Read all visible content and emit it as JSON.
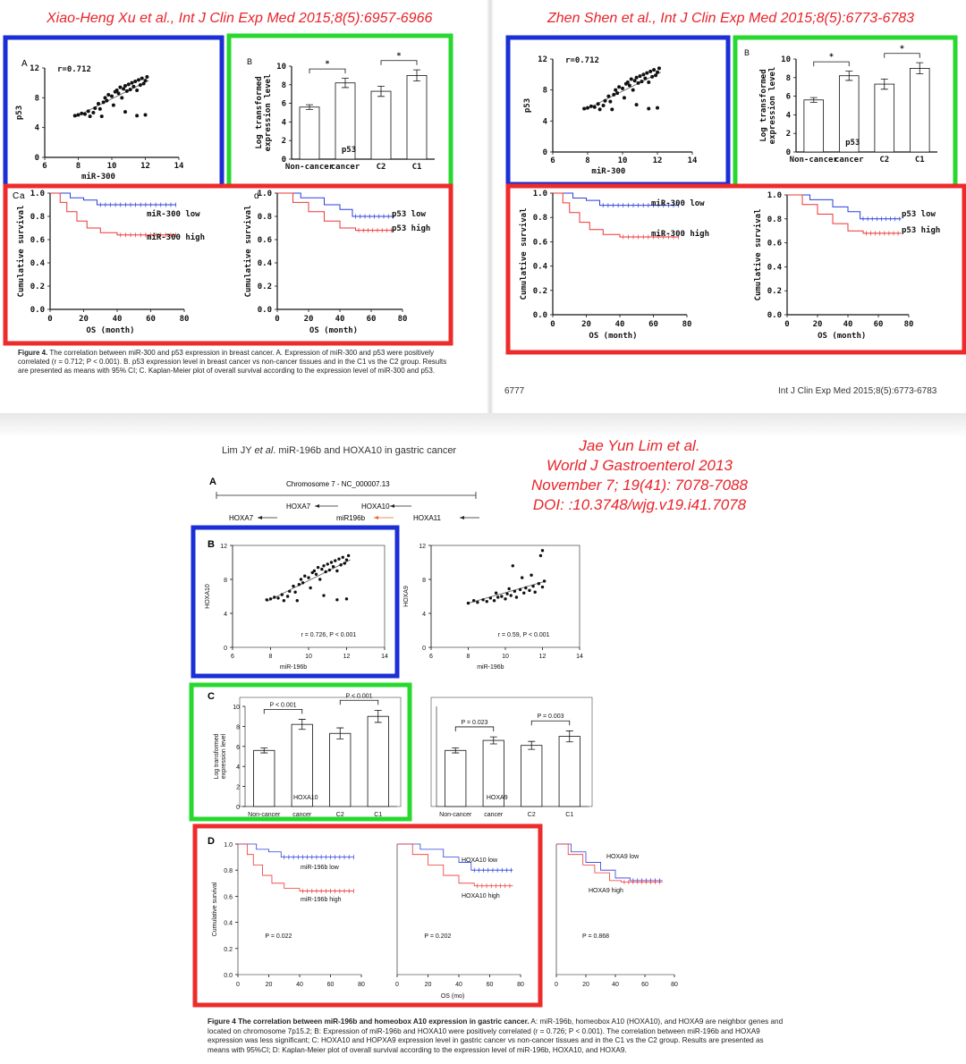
{
  "headers": {
    "left": "Xiao-Heng Xu et al., Int J Clin Exp Med 2015;8(5):6957-6966",
    "right": "Zhen Shen et al., Int J Clin Exp Med 2015;8(5):6773-6783",
    "bottom_lines": [
      "Jae Yun Lim et al.",
      "World J Gastroenterol 2013",
      "November 7; 19(41): 7078-7088",
      "DOI: :10.3748/wjg.v19.i41.7078"
    ]
  },
  "top_left_caption": {
    "label": "Figure 4.",
    "text": " The correlation between miR-300 and p53 expression in breast cancer. A. Expression of miR-300 and p53 were positively correlated (r = 0.712; P < 0.001). B. p53 expression level in breast cancer vs non-cancer tissues and in the C1 vs the C2 group. Results are presented as means with 95% CI; C. Kaplan-Meier plot of overall survival according to the expression level of miR-300 and p53."
  },
  "top_right_footer": {
    "page": "6777",
    "journal": "Int J Clin Exp Med 2015;8(5):6773-6783"
  },
  "bottom_running_head": {
    "author": "Lim JY ",
    "etal": "et al",
    "rest": ". miR-196b and HOXA10 in gastric cancer"
  },
  "gene_map": {
    "panel_label": "A",
    "chromosome": "Chromosome 7 - NC_000007.13",
    "genes": [
      "HOXA7",
      "HOXA10",
      "HOXA7",
      "miR196b",
      "HOXA11"
    ]
  },
  "panels": {
    "A": "A",
    "B": "B",
    "C": "C",
    "D": "D",
    "Ca": "C",
    "a": "a",
    "d": "d",
    "B2": "B"
  },
  "bottom_caption": {
    "label": "Figure 4  The correlation between miR-196b and homeobox A10 expression in gastric cancer.",
    "text": " A: miR-196b, homeobox A10 (HOXA10), and HOXA9 are neighbor genes and located on chromosome 7p15.2; B: Expression of miR-196b and HOXA10 were positively correlated (r = 0.726; P < 0.001). The correlation between miR-196b and HOXA9 expression was less significant; C: HOXA10 and HOPXA9 expression level in gastric cancer vs non-cancer tissues and in the C1 vs the C2 group. Results are presented as means with 95%CI; D: Kaplan-Meier plot of overall survival according to the expression level of miR-196b, HOXA10, and HOXA9."
  },
  "chart_data": [
    {
      "id": "tl_scatter",
      "type": "scatter",
      "ylabel": "p53",
      "xlabel": "miR-300",
      "annotation": "r=0.712",
      "xticks": [
        6,
        8,
        10,
        12,
        14
      ],
      "yticks": [
        0,
        4,
        8,
        12
      ],
      "xlim": [
        6,
        14
      ],
      "ylim": [
        0,
        12
      ],
      "points": [
        [
          7.8,
          5.6
        ],
        [
          8.0,
          5.7
        ],
        [
          8.2,
          5.9
        ],
        [
          8.4,
          5.8
        ],
        [
          8.6,
          6.2
        ],
        [
          8.7,
          5.5
        ],
        [
          8.9,
          6.0
        ],
        [
          9.0,
          6.6
        ],
        [
          9.2,
          7.2
        ],
        [
          9.3,
          6.5
        ],
        [
          9.5,
          7.4
        ],
        [
          9.6,
          8.0
        ],
        [
          9.7,
          7.6
        ],
        [
          9.8,
          8.4
        ],
        [
          10.0,
          8.2
        ],
        [
          10.1,
          7.0
        ],
        [
          10.2,
          8.8
        ],
        [
          10.3,
          9.0
        ],
        [
          10.4,
          8.6
        ],
        [
          10.5,
          9.4
        ],
        [
          10.6,
          8.0
        ],
        [
          10.7,
          9.2
        ],
        [
          10.8,
          9.6
        ],
        [
          10.9,
          8.9
        ],
        [
          11.0,
          9.8
        ],
        [
          11.1,
          9.1
        ],
        [
          11.2,
          10.0
        ],
        [
          11.3,
          9.5
        ],
        [
          11.4,
          10.2
        ],
        [
          11.5,
          9.0
        ],
        [
          11.6,
          10.4
        ],
        [
          11.7,
          9.7
        ],
        [
          11.8,
          10.6
        ],
        [
          11.9,
          9.9
        ],
        [
          12.0,
          10.3
        ],
        [
          12.1,
          10.8
        ],
        [
          11.5,
          5.6
        ],
        [
          12.0,
          5.7
        ],
        [
          10.8,
          6.1
        ],
        [
          9.4,
          5.5
        ]
      ],
      "trend": [
        [
          7.8,
          5.4
        ],
        [
          12.2,
          10.3
        ]
      ]
    },
    {
      "id": "tl_bar",
      "type": "bar",
      "ylabel": "Log transformed expression level",
      "categories": [
        "Non-cancer",
        "cancer",
        "C2",
        "C1"
      ],
      "values": [
        5.6,
        8.2,
        7.3,
        9.0
      ],
      "errors": [
        0.25,
        0.5,
        0.55,
        0.6
      ],
      "ylim": [
        0,
        10
      ],
      "yticks": [
        0,
        2,
        4,
        6,
        8,
        10
      ],
      "inner_label": "p53",
      "significance": [
        "*",
        "*"
      ]
    },
    {
      "id": "tl_km1",
      "type": "line",
      "ylabel": "Cumulative survival",
      "xlabel": "OS (month)",
      "xticks": [
        0,
        20,
        40,
        60,
        80
      ],
      "yticks": [
        0.0,
        0.2,
        0.4,
        0.6,
        0.8,
        1.0
      ],
      "series": [
        {
          "name": "miR-300 low",
          "color": "#2b3fdc",
          "steps": [
            [
              0,
              1.0
            ],
            [
              12,
              0.96
            ],
            [
              20,
              0.94
            ],
            [
              28,
              0.9
            ],
            [
              75,
              0.9
            ]
          ]
        },
        {
          "name": "miR-300 high",
          "color": "#ee3535",
          "steps": [
            [
              0,
              1.0
            ],
            [
              6,
              0.92
            ],
            [
              10,
              0.84
            ],
            [
              16,
              0.76
            ],
            [
              22,
              0.7
            ],
            [
              30,
              0.66
            ],
            [
              40,
              0.64
            ],
            [
              75,
              0.64
            ]
          ]
        }
      ]
    },
    {
      "id": "tl_km2",
      "type": "line",
      "ylabel": "Cumulative survival",
      "xlabel": "OS (month)",
      "xticks": [
        0,
        20,
        40,
        60,
        80
      ],
      "yticks": [
        0.0,
        0.2,
        0.4,
        0.6,
        0.8,
        1.0
      ],
      "series": [
        {
          "name": "p53 low",
          "color": "#2b3fdc",
          "steps": [
            [
              0,
              1.0
            ],
            [
              15,
              0.96
            ],
            [
              30,
              0.9
            ],
            [
              40,
              0.86
            ],
            [
              48,
              0.8
            ],
            [
              75,
              0.8
            ]
          ]
        },
        {
          "name": "p53 high",
          "color": "#ee3535",
          "steps": [
            [
              0,
              1.0
            ],
            [
              10,
              0.92
            ],
            [
              20,
              0.84
            ],
            [
              30,
              0.76
            ],
            [
              40,
              0.7
            ],
            [
              50,
              0.68
            ],
            [
              75,
              0.68
            ]
          ]
        }
      ]
    },
    {
      "id": "tr_scatter",
      "type": "scatter",
      "ylabel": "p53",
      "xlabel": "miR-300",
      "annotation": "r=0.712",
      "xticks": [
        6,
        8,
        10,
        12,
        14
      ],
      "yticks": [
        0,
        4,
        8,
        12
      ],
      "xlim": [
        6,
        14
      ],
      "ylim": [
        0,
        12
      ]
    },
    {
      "id": "tr_bar",
      "type": "bar",
      "ylabel": "Log transformed expression level",
      "categories": [
        "Non-cancer",
        "cancer",
        "C2",
        "C1"
      ],
      "values": [
        5.6,
        8.2,
        7.3,
        9.0
      ],
      "errors": [
        0.25,
        0.5,
        0.55,
        0.6
      ],
      "ylim": [
        0,
        10
      ],
      "yticks": [
        0,
        2,
        4,
        6,
        8,
        10
      ],
      "inner_label": "p53",
      "significance": [
        "*",
        "*"
      ]
    },
    {
      "id": "tr_km1",
      "type": "line",
      "ylabel": "Cumulative survival",
      "xlabel": "OS (month)",
      "xticks": [
        0,
        20,
        40,
        60,
        80
      ],
      "yticks": [
        0.0,
        0.2,
        0.4,
        0.6,
        0.8,
        1.0
      ],
      "series": [
        {
          "name": "miR-300 low",
          "color": "#2b3fdc"
        },
        {
          "name": "miR-300 high",
          "color": "#ee3535"
        }
      ]
    },
    {
      "id": "tr_km2",
      "type": "line",
      "ylabel": "Cumulative survival",
      "xlabel": "OS (month)",
      "xticks": [
        0,
        20,
        40,
        60,
        80
      ],
      "yticks": [
        0.0,
        0.2,
        0.4,
        0.6,
        0.8,
        1.0
      ],
      "series": [
        {
          "name": "p53 low",
          "color": "#2b3fdc"
        },
        {
          "name": "p53 high",
          "color": "#ee3535"
        }
      ]
    },
    {
      "id": "b_scatter1",
      "type": "scatter",
      "ylabel": "HOXA10",
      "xlabel": "miR-196b",
      "annotation": "r = 0.726, P < 0.001",
      "xticks": [
        6,
        8,
        10,
        12,
        14
      ],
      "yticks": [
        0,
        4,
        8,
        12
      ],
      "xlim": [
        6,
        14
      ],
      "ylim": [
        0,
        12
      ]
    },
    {
      "id": "b_scatter2",
      "type": "scatter",
      "ylabel": "HOXA9",
      "xlabel": "miR-196b",
      "annotation": "r = 0.59, P < 0.001",
      "xticks": [
        6,
        8,
        10,
        12,
        14
      ],
      "yticks": [
        0,
        4,
        8,
        12
      ],
      "xlim": [
        6,
        14
      ],
      "ylim": [
        0,
        12
      ],
      "points": [
        [
          8.0,
          5.2
        ],
        [
          8.3,
          5.5
        ],
        [
          8.5,
          5.3
        ],
        [
          8.8,
          5.6
        ],
        [
          9.0,
          5.4
        ],
        [
          9.2,
          5.8
        ],
        [
          9.4,
          5.5
        ],
        [
          9.6,
          5.9
        ],
        [
          9.8,
          6.0
        ],
        [
          10.0,
          5.7
        ],
        [
          10.1,
          6.3
        ],
        [
          10.3,
          6.1
        ],
        [
          10.5,
          6.6
        ],
        [
          10.6,
          5.9
        ],
        [
          10.8,
          6.8
        ],
        [
          11.0,
          6.4
        ],
        [
          11.1,
          7.0
        ],
        [
          11.3,
          6.7
        ],
        [
          11.5,
          7.2
        ],
        [
          11.6,
          6.5
        ],
        [
          11.8,
          7.5
        ],
        [
          12.0,
          7.1
        ],
        [
          12.1,
          7.8
        ],
        [
          10.4,
          9.6
        ],
        [
          11.9,
          10.8
        ],
        [
          12.0,
          11.4
        ],
        [
          10.9,
          8.2
        ],
        [
          11.4,
          8.5
        ],
        [
          9.5,
          6.4
        ],
        [
          10.2,
          6.9
        ]
      ],
      "trend": [
        [
          8.0,
          5.2
        ],
        [
          12.2,
          7.8
        ]
      ]
    },
    {
      "id": "b_bar1",
      "type": "bar",
      "ylabel": "Log transformed expression level",
      "categories": [
        "Non-cancer",
        "cancer",
        "C2",
        "C1"
      ],
      "values": [
        5.6,
        8.2,
        7.3,
        9.0
      ],
      "errors": [
        0.25,
        0.5,
        0.55,
        0.6
      ],
      "ylim": [
        0,
        10
      ],
      "yticks": [
        0,
        2,
        4,
        6,
        8,
        10
      ],
      "inner_label": "HOXA10",
      "significance": [
        "P < 0.001",
        "P < 0.001"
      ]
    },
    {
      "id": "b_bar2",
      "type": "bar",
      "categories": [
        "Non-cancer",
        "cancer",
        "C2",
        "C1"
      ],
      "values": [
        5.6,
        6.6,
        6.1,
        7.0
      ],
      "errors": [
        0.25,
        0.35,
        0.4,
        0.55
      ],
      "ylim": [
        0,
        10
      ],
      "inner_label": "HOXA9",
      "significance": [
        "P = 0.023",
        "P = 0.003"
      ]
    },
    {
      "id": "b_km1",
      "type": "line",
      "ylabel": "Cumulative survival",
      "xticks": [
        0,
        20,
        40,
        60,
        80
      ],
      "yticks": [
        0.0,
        0.2,
        0.4,
        0.6,
        0.8,
        1.0
      ],
      "annotation": "P = 0.022",
      "series": [
        {
          "name": "miR-196b low",
          "color": "#2b3fdc"
        },
        {
          "name": "miR-196b high",
          "color": "#ee3535"
        }
      ]
    },
    {
      "id": "b_km2",
      "type": "line",
      "xlabel": "OS (mo)",
      "xticks": [
        0,
        20,
        40,
        60,
        80
      ],
      "annotation": "P = 0.202",
      "series": [
        {
          "name": "HOXA10 low",
          "color": "#2b3fdc"
        },
        {
          "name": "HOXA10 high",
          "color": "#ee3535"
        }
      ]
    },
    {
      "id": "b_km3",
      "type": "line",
      "xticks": [
        0,
        20,
        40,
        60,
        80
      ],
      "annotation": "P = 0.868",
      "series": [
        {
          "name": "HOXA9 low",
          "color": "#2b3fdc",
          "steps": [
            [
              0,
              1.0
            ],
            [
              10,
              0.94
            ],
            [
              20,
              0.86
            ],
            [
              30,
              0.8
            ],
            [
              40,
              0.74
            ],
            [
              50,
              0.72
            ],
            [
              72,
              0.72
            ]
          ]
        },
        {
          "name": "HOXA9 high",
          "color": "#ee3535",
          "steps": [
            [
              0,
              1.0
            ],
            [
              8,
              0.92
            ],
            [
              18,
              0.84
            ],
            [
              26,
              0.78
            ],
            [
              36,
              0.72
            ],
            [
              44,
              0.71
            ],
            [
              72,
              0.71
            ]
          ]
        }
      ]
    }
  ]
}
